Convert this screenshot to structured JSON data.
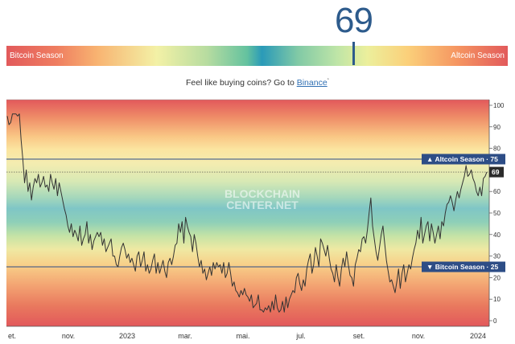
{
  "current_value": "69",
  "gauge": {
    "left_label": "Bitcoin Season",
    "right_label": "Altcoin Season",
    "marker_value": 69,
    "marker_color": "#2d5b8c"
  },
  "cta": {
    "text": "Feel like buying coins? Go to",
    "link_label": "Binance",
    "link_mark": "*"
  },
  "chart_data": {
    "type": "line",
    "watermark_lines": [
      "BLOCKCHAIN",
      "CENTER.NET"
    ],
    "ylim": [
      0,
      100
    ],
    "y_ticks": [
      0,
      10,
      20,
      30,
      40,
      50,
      60,
      70,
      80,
      90,
      100
    ],
    "x_ticks": [
      "et.",
      "nov.",
      "2023",
      "mar.",
      "mai.",
      "jul.",
      "set.",
      "nov.",
      "2024"
    ],
    "thresholds": [
      {
        "name": "Altcoin Season",
        "arrow": "▲",
        "value": 75,
        "color": "#2d4d86"
      },
      {
        "name": "Bitcoin Season",
        "arrow": "▼",
        "value": 25,
        "color": "#2d4d86"
      }
    ],
    "current_tag": "69",
    "current_value": 69,
    "series": [
      {
        "color": "#333333",
        "values": [
          95,
          91,
          92,
          96,
          96,
          96,
          95,
          96,
          84,
          75,
          64,
          70,
          60,
          64,
          56,
          62,
          66,
          64,
          68,
          62,
          64,
          67,
          62,
          63,
          60,
          68,
          64,
          61,
          66,
          58,
          64,
          60,
          56,
          52,
          49,
          44,
          41,
          45,
          39,
          42,
          40,
          37,
          44,
          35,
          38,
          40,
          46,
          36,
          40,
          33,
          37,
          39,
          41,
          39,
          41,
          35,
          38,
          32,
          34,
          36,
          38,
          30,
          30,
          26,
          25,
          30,
          34,
          36,
          33,
          29,
          31,
          27,
          29,
          26,
          23,
          30,
          32,
          25,
          28,
          32,
          23,
          26,
          22,
          24,
          28,
          31,
          22,
          27,
          22,
          25,
          28,
          23,
          20,
          27,
          29,
          26,
          30,
          35,
          36,
          45,
          41,
          46,
          36,
          48,
          44,
          41,
          39,
          32,
          40,
          36,
          30,
          25,
          28,
          22,
          24,
          19,
          22,
          25,
          21,
          27,
          24,
          27,
          25,
          26,
          22,
          27,
          20,
          22,
          27,
          22,
          16,
          18,
          14,
          13,
          11,
          14,
          12,
          15,
          12,
          11,
          9,
          12,
          6,
          7,
          8,
          12,
          5,
          5,
          4,
          6,
          5,
          7,
          4,
          9,
          5,
          12,
          6,
          4,
          5,
          9,
          4,
          11,
          6,
          10,
          12,
          14,
          13,
          20,
          22,
          17,
          14,
          19,
          16,
          24,
          28,
          31,
          22,
          26,
          34,
          30,
          25,
          38,
          36,
          33,
          30,
          35,
          29,
          24,
          22,
          18,
          26,
          20,
          16,
          24,
          29,
          25,
          32,
          26,
          21,
          20,
          16,
          26,
          29,
          33,
          32,
          38,
          39,
          36,
          42,
          50,
          57,
          44,
          38,
          32,
          28,
          34,
          40,
          44,
          36,
          28,
          23,
          18,
          19,
          16,
          13,
          18,
          24,
          15,
          22,
          26,
          18,
          22,
          26,
          24,
          29,
          33,
          36,
          42,
          38,
          48,
          36,
          40,
          44,
          46,
          37,
          45,
          41,
          36,
          40,
          44,
          38,
          46,
          44,
          50,
          54,
          55,
          58,
          55,
          51,
          56,
          60,
          57,
          61,
          64,
          67,
          72,
          67,
          68,
          70,
          66,
          64,
          60,
          58,
          62,
          58,
          66,
          67,
          69
        ]
      }
    ]
  }
}
